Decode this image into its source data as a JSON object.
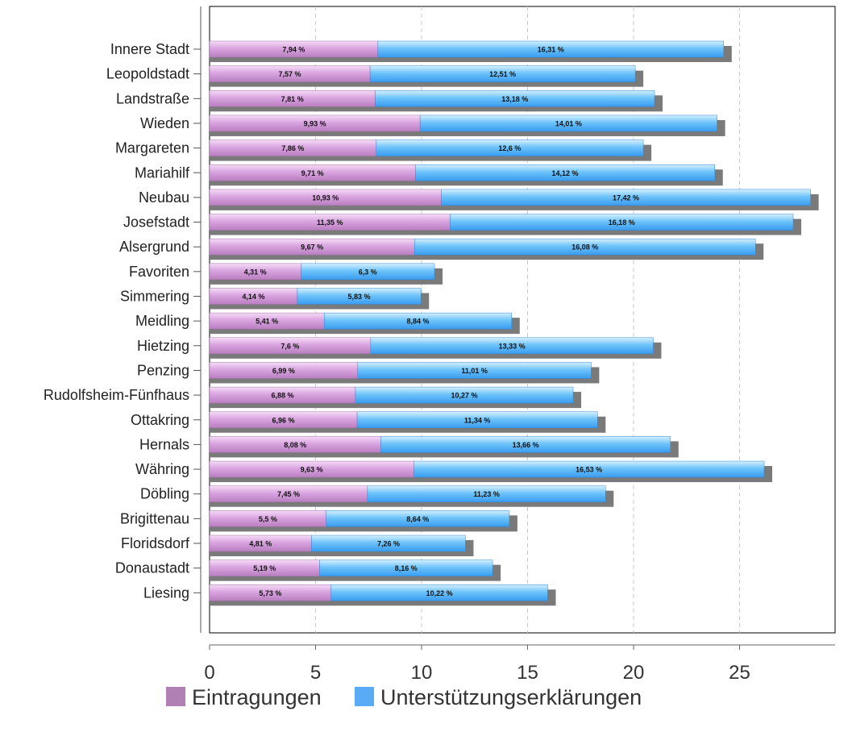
{
  "chart_data": {
    "type": "bar",
    "orientation": "horizontal",
    "stacked": true,
    "categories": [
      "Innere Stadt",
      "Leopoldstadt",
      "Landstraße",
      "Wieden",
      "Margareten",
      "Mariahilf",
      "Neubau",
      "Josefstadt",
      "Alsergrund",
      "Favoriten",
      "Simmering",
      "Meidling",
      "Hietzing",
      "Penzing",
      "Rudolfsheim-Fünfhaus",
      "Ottakring",
      "Hernals",
      "Währing",
      "Döbling",
      "Brigittenau",
      "Floridsdorf",
      "Donaustadt",
      "Liesing"
    ],
    "series": [
      {
        "name": "Eintragungen",
        "color": "#b07fb4",
        "values": [
          7.94,
          7.57,
          7.81,
          9.93,
          7.86,
          9.71,
          10.93,
          11.35,
          9.67,
          4.31,
          4.14,
          5.41,
          7.6,
          6.99,
          6.88,
          6.96,
          8.08,
          9.63,
          7.45,
          5.5,
          4.81,
          5.19,
          5.73
        ],
        "labels": [
          "7,94 %",
          "7,57 %",
          "7,81 %",
          "9,93 %",
          "7,86 %",
          "9,71 %",
          "10,93 %",
          "11,35 %",
          "9,67 %",
          "4,31 %",
          "4,14 %",
          "5,41 %",
          "7,6 %",
          "6,99 %",
          "6,88 %",
          "6,96 %",
          "8,08 %",
          "9,63 %",
          "7,45 %",
          "5,5 %",
          "4,81 %",
          "5,19 %",
          "5,73 %"
        ]
      },
      {
        "name": "Unterstützungserklärungen",
        "color": "#5aabf5",
        "values": [
          16.31,
          12.51,
          13.18,
          14.01,
          12.6,
          14.12,
          17.42,
          16.18,
          16.08,
          6.3,
          5.83,
          8.84,
          13.33,
          11.01,
          10.27,
          11.34,
          13.66,
          16.53,
          11.23,
          8.64,
          7.26,
          8.16,
          10.22
        ],
        "labels": [
          "16,31 %",
          "12,51 %",
          "13,18 %",
          "14,01 %",
          "12,6 %",
          "14,12 %",
          "17,42 %",
          "16,18 %",
          "16,08 %",
          "6,3 %",
          "5,83 %",
          "8,84 %",
          "13,33 %",
          "11,01 %",
          "10,27 %",
          "11,34 %",
          "13,66 %",
          "16,53 %",
          "11,23 %",
          "8,64 %",
          "7,26 %",
          "8,16 %",
          "10,22 %"
        ]
      }
    ],
    "x_ticks": [
      "0",
      "5",
      "10",
      "15",
      "20",
      "25"
    ],
    "x_tick_values": [
      0,
      5,
      10,
      15,
      20,
      25
    ],
    "xlim": [
      0,
      30
    ],
    "grid": true,
    "legend_position": "bottom"
  }
}
